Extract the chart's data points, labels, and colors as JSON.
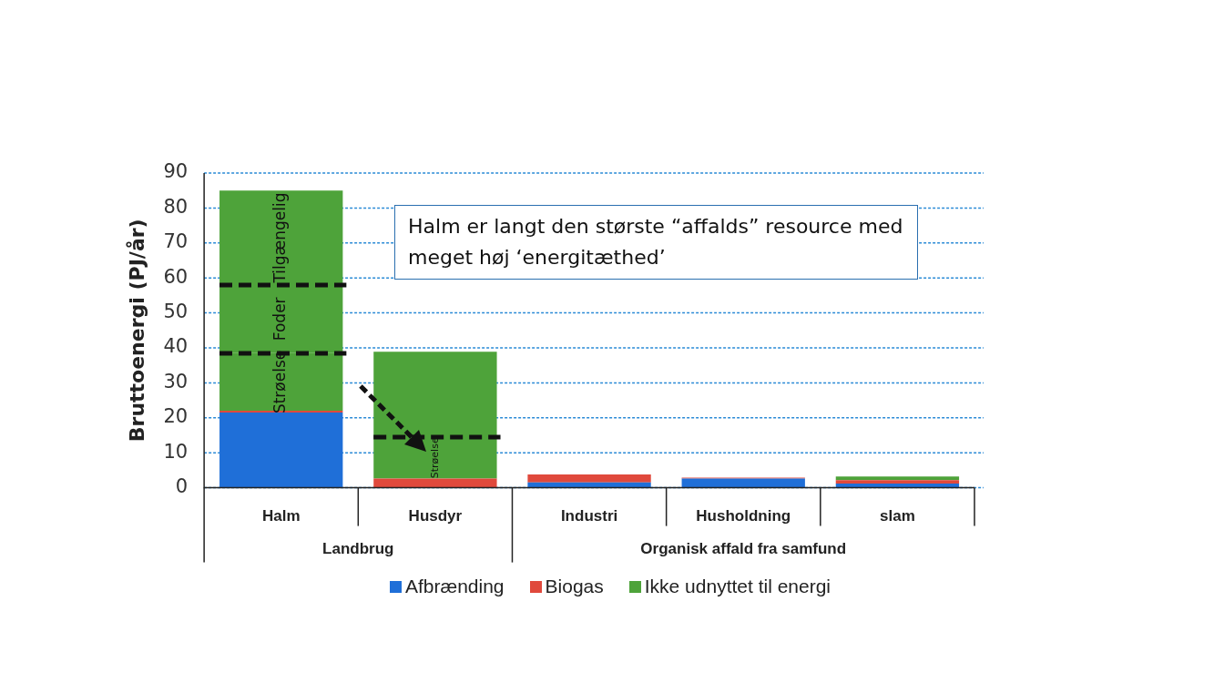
{
  "chart_data": {
    "type": "bar",
    "stacked": true,
    "ylabel": "Bruttoenergi (PJ/år)",
    "categories": [
      "Halm",
      "Husdyr",
      "Industri",
      "Husholdning",
      "slam"
    ],
    "series": [
      {
        "name": "Afbrænding",
        "color": "#1f6fd8",
        "values": [
          21.5,
          0,
          1.5,
          2.6,
          1.2
        ]
      },
      {
        "name": "Biogas",
        "color": "#e0493c",
        "values": [
          0.5,
          2.6,
          2.3,
          0.3,
          1.0
        ]
      },
      {
        "name": "Ikke udnyttet til energi",
        "color": "#4ea33a",
        "values": [
          16.5,
          11.9,
          0,
          0,
          1.0
        ]
      },
      {
        "color": "#4ea33a",
        "values": [
          19.5,
          24.4,
          0,
          0,
          0
        ]
      },
      {
        "color": "#4ea33a",
        "values": [
          27,
          0,
          0,
          0,
          0
        ]
      }
    ],
    "ylim": [
      0,
      90
    ],
    "yticks": [
      0,
      10,
      20,
      30,
      40,
      50,
      60,
      70,
      80,
      90
    ],
    "grid": "y",
    "legend": "bottom",
    "annotations": [
      "Halm er langt den største “affalds” resource med meget høj ‘energitæthed’",
      "Landbrug",
      "Organisk affald fra samfund",
      "Strøelse",
      "Foder",
      "Tilgængelig",
      "Strøelse"
    ]
  }
}
